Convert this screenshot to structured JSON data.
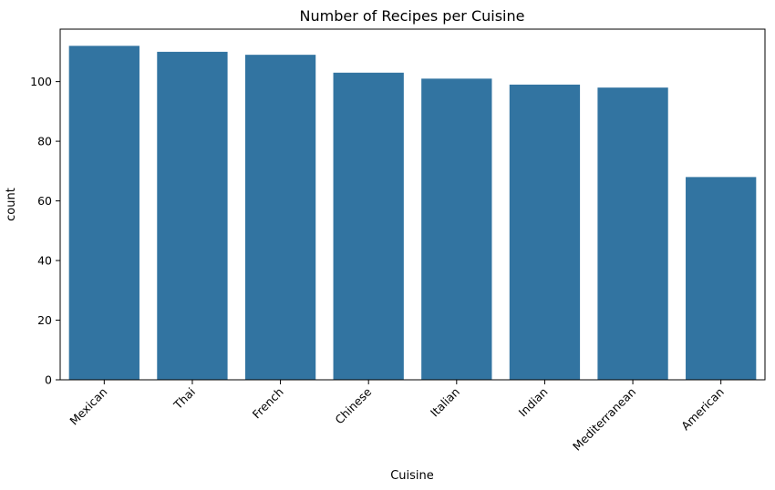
{
  "chart_data": {
    "type": "bar",
    "title": "Number of Recipes per Cuisine",
    "xlabel": "Cuisine",
    "ylabel": "count",
    "categories": [
      "Mexican",
      "Thai",
      "French",
      "Chinese",
      "Italian",
      "Indian",
      "Mediterranean",
      "American"
    ],
    "values": [
      112,
      110,
      109,
      103,
      101,
      99,
      98,
      68
    ],
    "ylim": [
      0,
      117.6
    ],
    "yticks": [
      "0",
      "20",
      "40",
      "60",
      "80",
      "100"
    ],
    "bar_color": "#3274a1",
    "grid": false,
    "legend": "none",
    "xtick_rotation": 45
  }
}
